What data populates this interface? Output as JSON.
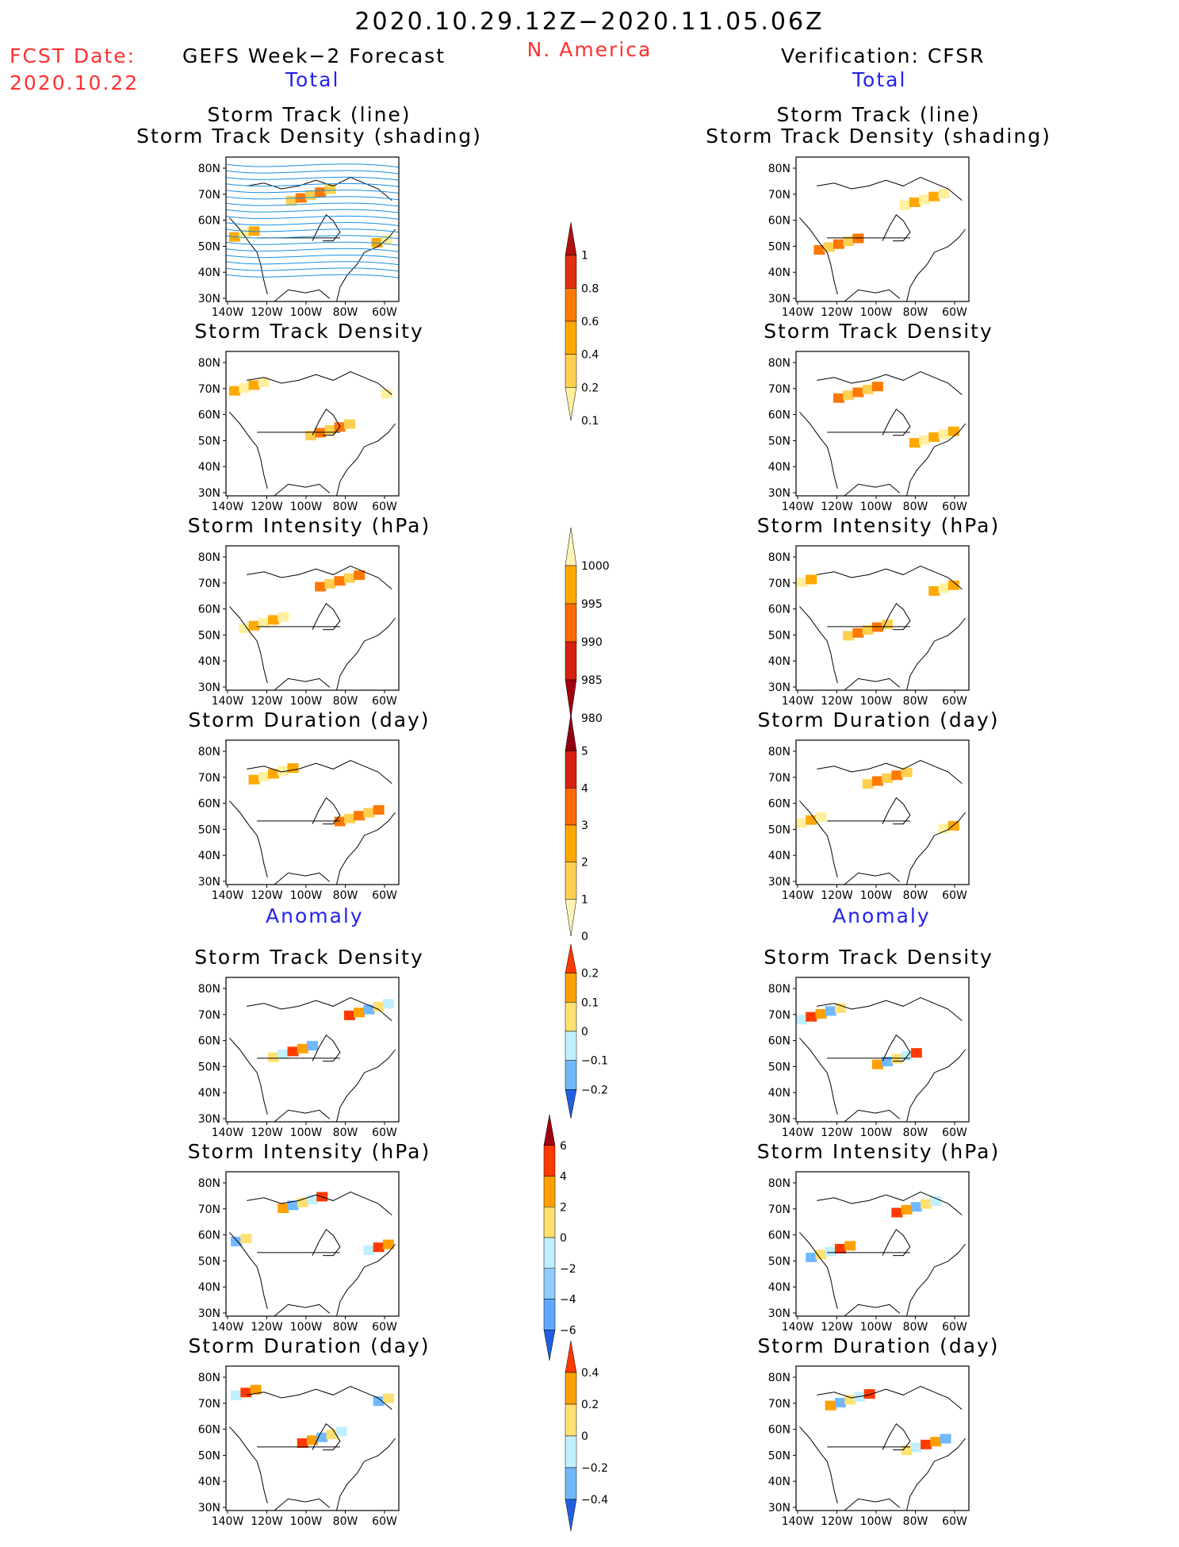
{
  "header": {
    "title": "2020.10.29.12Z−2020.11.05.06Z",
    "fcst_label": "FCST Date:",
    "fcst_date": "2020.10.22",
    "region": "N. America",
    "left_heading": "GEFS Week−2 Forecast",
    "right_heading": "Verification: CFSR",
    "total_label": "Total",
    "anomaly_label": "Anomaly"
  },
  "axes": {
    "lat_labels": [
      "80N",
      "70N",
      "60N",
      "50N",
      "40N",
      "30N"
    ],
    "lon_labels": [
      "140W",
      "120W",
      "100W",
      "80W",
      "60W"
    ]
  },
  "panels": [
    {
      "row": 1,
      "title": "Storm Track (line)",
      "title2": "Storm Track Density (shading)"
    },
    {
      "row": 2,
      "title": "Storm Track Density"
    },
    {
      "row": 3,
      "title": "Storm Intensity (hPa)"
    },
    {
      "row": 4,
      "title": "Storm Duration (day)"
    },
    {
      "row": 5,
      "title": "Storm Track Density"
    },
    {
      "row": 6,
      "title": "Storm Intensity (hPa)"
    },
    {
      "row": 7,
      "title": "Storm Duration (day)"
    }
  ],
  "colorbars": {
    "density_total": {
      "labels": [
        "1",
        "0.8",
        "0.6",
        "0.4",
        "0.2",
        "0.1"
      ],
      "colors": [
        "#b01010",
        "#e03010",
        "#ff7800",
        "#ffa800",
        "#ffd050",
        "#fff0a0"
      ]
    },
    "intensity_total": {
      "labels": [
        "1000",
        "995",
        "990",
        "985",
        "980"
      ],
      "colors": [
        "#fff4b8",
        "#ffa800",
        "#ff6a00",
        "#d82010",
        "#a00010"
      ]
    },
    "duration_total": {
      "labels": [
        "5",
        "4",
        "3",
        "2",
        "1",
        "0"
      ],
      "colors": [
        "#900010",
        "#d82010",
        "#ff6a00",
        "#ffa800",
        "#ffd050",
        "#fff4b8"
      ]
    },
    "density_anom": {
      "labels": [
        "0.2",
        "0.1",
        "0",
        "−0.1",
        "−0.2"
      ],
      "colors": [
        "#ff3a00",
        "#ffa000",
        "#ffe070",
        "#c0f0ff",
        "#70b8ff",
        "#2060e0"
      ]
    },
    "intensity_anom": {
      "labels": [
        "6",
        "4",
        "2",
        "0",
        "−2",
        "−4",
        "−6"
      ],
      "colors": [
        "#a00010",
        "#ff3a00",
        "#ffa000",
        "#ffe070",
        "#c0f0ff",
        "#90ccff",
        "#60a8ff",
        "#2060e0"
      ]
    },
    "duration_anom": {
      "labels": [
        "0.4",
        "0.2",
        "0",
        "−0.2",
        "−0.4"
      ],
      "colors": [
        "#ff3a00",
        "#ffa000",
        "#ffe070",
        "#c0f0ff",
        "#70b8ff",
        "#2060e0"
      ]
    }
  }
}
